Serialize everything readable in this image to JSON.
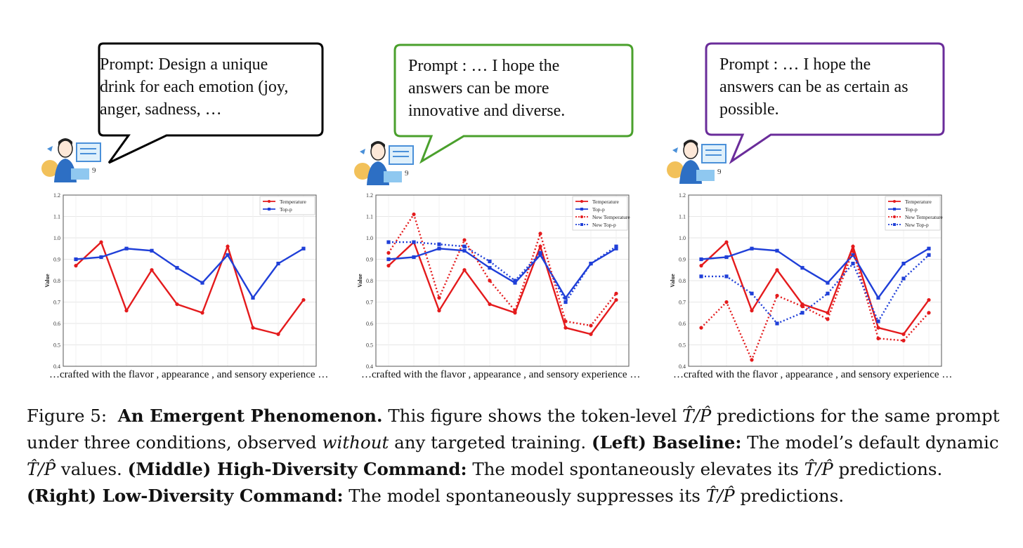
{
  "colors": {
    "temperature": "#e41a1c",
    "top_p": "#1f3fd8",
    "bubble_left": "#000000",
    "bubble_middle": "#4aa02c",
    "bubble_right": "#6a2c9a"
  },
  "panels": [
    {
      "prompt": "Prompt: Design a unique\ndrink for each emotion (joy,\nanger, sadness, …",
      "xcaption": "…crafted with the flavor , appearance , and sensory experience …"
    },
    {
      "prompt": "Prompt : … I hope the\nanswers can be more\ninnovative and diverse.",
      "xcaption": "…crafted with the flavor , appearance , and sensory experience …"
    },
    {
      "prompt": "Prompt : … I hope the\nanswers can be as certain as\npossible.",
      "xcaption": "…crafted with the flavor , appearance , and sensory experience …"
    }
  ],
  "chart_data": [
    {
      "type": "line",
      "ylabel": "Value",
      "ylim": [
        0.4,
        1.2
      ],
      "yticks": [
        "0.4",
        "0.5",
        "0.6",
        "0.7",
        "0.8",
        "0.9",
        "1.0",
        "1.1",
        "1.2"
      ],
      "legend_position": "top-right",
      "x": [
        1,
        2,
        3,
        4,
        5,
        6,
        7,
        8,
        9,
        10
      ],
      "series": [
        {
          "name": "Temperature",
          "style": "solid",
          "marker": "circle",
          "color_key": "temperature",
          "values": [
            0.87,
            0.98,
            0.66,
            0.85,
            0.69,
            0.65,
            0.96,
            0.58,
            0.55,
            0.71
          ]
        },
        {
          "name": "Top-p",
          "style": "solid",
          "marker": "square",
          "color_key": "top_p",
          "values": [
            0.9,
            0.91,
            0.95,
            0.94,
            0.86,
            0.79,
            0.92,
            0.72,
            0.88,
            0.95
          ]
        }
      ]
    },
    {
      "type": "line",
      "ylabel": "Value",
      "ylim": [
        0.4,
        1.2
      ],
      "yticks": [
        "0.4",
        "0.5",
        "0.6",
        "0.7",
        "0.8",
        "0.9",
        "1.0",
        "1.1",
        "1.2"
      ],
      "legend_position": "top-right",
      "x": [
        1,
        2,
        3,
        4,
        5,
        6,
        7,
        8,
        9,
        10
      ],
      "series": [
        {
          "name": "Temperature",
          "style": "solid",
          "marker": "circle",
          "color_key": "temperature",
          "values": [
            0.87,
            0.98,
            0.66,
            0.85,
            0.69,
            0.65,
            0.96,
            0.58,
            0.55,
            0.71
          ]
        },
        {
          "name": "Top-p",
          "style": "solid",
          "marker": "square",
          "color_key": "top_p",
          "values": [
            0.9,
            0.91,
            0.95,
            0.94,
            0.86,
            0.79,
            0.92,
            0.72,
            0.88,
            0.95
          ]
        },
        {
          "name": "New Temperature",
          "style": "dotted",
          "marker": "circle",
          "color_key": "temperature",
          "values": [
            0.93,
            1.11,
            0.72,
            0.99,
            0.8,
            0.66,
            1.02,
            0.61,
            0.59,
            0.74
          ]
        },
        {
          "name": "New Top-p",
          "style": "dotted",
          "marker": "square",
          "color_key": "top_p",
          "values": [
            0.98,
            0.98,
            0.97,
            0.96,
            0.89,
            0.8,
            0.93,
            0.7,
            0.88,
            0.96
          ]
        }
      ]
    },
    {
      "type": "line",
      "ylabel": "Value",
      "ylim": [
        0.4,
        1.2
      ],
      "yticks": [
        "0.4",
        "0.5",
        "0.6",
        "0.7",
        "0.8",
        "0.9",
        "1.0",
        "1.1",
        "1.2"
      ],
      "legend_position": "top-right",
      "x": [
        1,
        2,
        3,
        4,
        5,
        6,
        7,
        8,
        9,
        10
      ],
      "series": [
        {
          "name": "Temperature",
          "style": "solid",
          "marker": "circle",
          "color_key": "temperature",
          "values": [
            0.87,
            0.98,
            0.66,
            0.85,
            0.69,
            0.65,
            0.96,
            0.58,
            0.55,
            0.71
          ]
        },
        {
          "name": "Top-p",
          "style": "solid",
          "marker": "square",
          "color_key": "top_p",
          "values": [
            0.9,
            0.91,
            0.95,
            0.94,
            0.86,
            0.79,
            0.92,
            0.72,
            0.88,
            0.95
          ]
        },
        {
          "name": "New Temperature",
          "style": "dotted",
          "marker": "circle",
          "color_key": "temperature",
          "values": [
            0.58,
            0.7,
            0.43,
            0.73,
            0.68,
            0.62,
            0.94,
            0.53,
            0.52,
            0.65
          ]
        },
        {
          "name": "New Top-p",
          "style": "dotted",
          "marker": "square",
          "color_key": "top_p",
          "values": [
            0.82,
            0.82,
            0.74,
            0.6,
            0.65,
            0.74,
            0.88,
            0.61,
            0.81,
            0.92
          ]
        }
      ]
    }
  ],
  "caption": {
    "label": "Figure 5:",
    "title": "An Emergent Phenomenon.",
    "text1": "This figure shows the token-level",
    "tp": "T̂/P̂",
    "text2": "predictions for the same prompt under three conditions, observed",
    "without": "without",
    "text3": "any targeted training.",
    "left_label": "(Left) Baseline:",
    "left_text1": "The model’s default dynamic",
    "left_text2": "values.",
    "middle_label": "(Middle) High-Diversity Command:",
    "middle_text1": "The model spontaneously elevates its",
    "middle_text2": "predictions.",
    "right_label": "(Right) Low-Diversity Command:",
    "right_text1": "The model spontaneously suppresses its",
    "right_text2": "predictions."
  }
}
